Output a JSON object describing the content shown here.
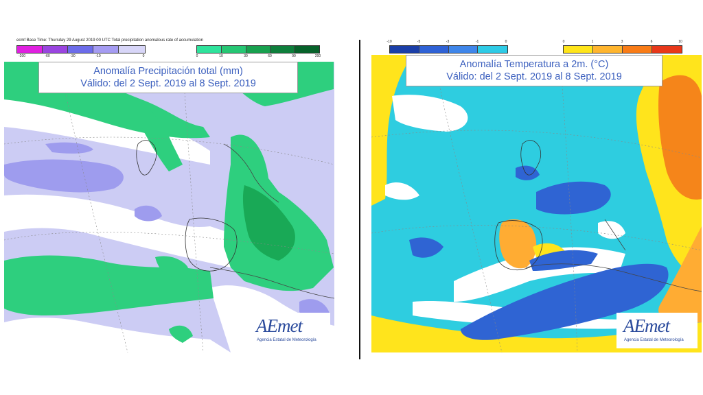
{
  "precip": {
    "caption": "ecmf Base Time: Thursday 29 August 2019 00 UTC Total precipitation anomalous rate of accumulation",
    "title_line1": "Anomalía Precipitación total (mm)",
    "title_line2": "Válido: del 2 Sept. 2019 al 8 Sept. 2019",
    "neg_ticks": [
      "-200",
      "-60",
      "-30",
      "-10",
      "0"
    ],
    "neg_colors": [
      "#e020e0",
      "#9a45e0",
      "#6c6cea",
      "#a59cf2",
      "#d8d6f8"
    ],
    "pos_ticks": [
      "0",
      "10",
      "30",
      "60",
      "90",
      "200"
    ],
    "pos_colors": [
      "#2fe39c",
      "#26c774",
      "#18a14f",
      "#0e7f3c",
      "#06622a"
    ],
    "colors": {
      "wet": "#2ecf7e",
      "wet_dark": "#19a956",
      "dry": "#ccccf4",
      "dry_dark": "#9e9cee",
      "none": "#ffffff"
    }
  },
  "temp": {
    "title_line1": "Anomalía Temperatura a 2m. (°C)",
    "title_line2": "Válido: del 2 Sept. 2019 al 8 Sept. 2019",
    "neg_ticks": [
      "-10",
      "-5",
      "-3",
      "-1",
      "0"
    ],
    "neg_colors": [
      "#1a3ea8",
      "#2f62d6",
      "#3f86ea",
      "#2ecbe6"
    ],
    "pos_ticks": [
      "0",
      "1",
      "3",
      "6",
      "10"
    ],
    "pos_colors": [
      "#ffe51a",
      "#ffb52e",
      "#f97c17",
      "#e8381a"
    ],
    "colors": {
      "cold": "#2ecde0",
      "cold_dark": "#2f64d3",
      "warm": "#ffe41c",
      "warm_dark": "#ffac33",
      "hot": "#f5851a",
      "neutral": "#ffffff"
    }
  },
  "logo": {
    "word": "AEmet",
    "subtitle": "Agencia Estatal de Meteorología"
  }
}
